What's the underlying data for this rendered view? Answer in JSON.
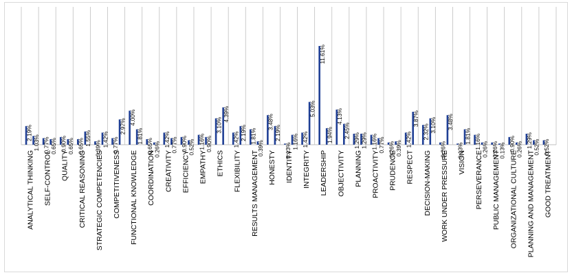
{
  "chart_data": {
    "type": "bar",
    "title": "",
    "xlabel": "",
    "ylabel": "",
    "ylim": [
      0,
      12.5
    ],
    "grid": false,
    "legend": "none",
    "groups": [
      {
        "label": "ANALYTICAL THINKING",
        "values": [
          2.19,
          1.03
        ]
      },
      {
        "label": "SELF-CONTROL",
        "values": [
          0.77,
          0.65
        ]
      },
      {
        "label": "QUALITY",
        "values": [
          0.9,
          0.65
        ]
      },
      {
        "label": "CRITICAL REASONING",
        "values": [
          0.65,
          1.55
        ]
      },
      {
        "label": "STRATEGIC COMPETENCIES",
        "values": [
          0.39,
          1.42
        ]
      },
      {
        "label": "COMPETITIVENESS",
        "values": [
          0.77,
          2.97
        ]
      },
      {
        "label": "FUNCTIONAL KNOWLEDGE",
        "values": [
          4.0,
          1.81
        ]
      },
      {
        "label": "COORDINATION",
        "values": [
          0.65,
          0.26
        ]
      },
      {
        "label": "CREATIVITY",
        "values": [
          1.42,
          0.77
        ]
      },
      {
        "label": "EFFICIENCY",
        "values": [
          0.9,
          0.52
        ]
      },
      {
        "label": "EMPATHY",
        "values": [
          1.16,
          0.9
        ]
      },
      {
        "label": "ETHICS",
        "values": [
          3.1,
          4.39
        ]
      },
      {
        "label": "FLEXIBILITY",
        "values": [
          1.42,
          2.19
        ]
      },
      {
        "label": "RESULTS MANAGEMENT",
        "values": [
          1.81,
          0.39
        ]
      },
      {
        "label": "HONESTY",
        "values": [
          3.48,
          2.19
        ]
      },
      {
        "label": "IDENTITY",
        "values": [
          0.13,
          1.16
        ]
      },
      {
        "label": "INTEGRITY",
        "values": [
          1.42,
          5.03
        ]
      },
      {
        "label": "LEADERSHIP",
        "values": [
          11.61,
          1.94
        ]
      },
      {
        "label": "OBJECTIVITY",
        "values": [
          4.13,
          2.45
        ]
      },
      {
        "label": "PLANNING",
        "values": [
          1.29,
          1.29
        ]
      },
      {
        "label": "PROACTIVITY",
        "values": [
          1.16,
          0.77
        ]
      },
      {
        "label": "PRUDENCE",
        "values": [
          0.26,
          0.39
        ]
      },
      {
        "label": "RESPECT",
        "values": [
          1.42,
          3.87
        ]
      },
      {
        "label": "DECISION-MAKING",
        "values": [
          2.32,
          3.1
        ]
      },
      {
        "label": "WORK UNDER PRESSURE",
        "values": [
          0.26,
          3.48
        ]
      },
      {
        "label": "VISION",
        "values": [
          0.13,
          1.81
        ]
      },
      {
        "label": "PERSEVERANCE",
        "values": [
          1.16,
          0.26
        ]
      },
      {
        "label": "PUBLIC MANAGEMENT",
        "values": [
          0.26,
          0.13
        ]
      },
      {
        "label": "ORGANIZATIONAL CULTURE",
        "values": [
          0.9,
          0.26
        ]
      },
      {
        "label": "PLANNING AND MANAGEMENT",
        "values": [
          1.29,
          0.52
        ]
      },
      {
        "label": "GOOD TREATMENT",
        "values": [
          0.52,
          null
        ]
      }
    ],
    "bar_color": "#1f3f95",
    "axis_color": "#bfbfbf"
  }
}
